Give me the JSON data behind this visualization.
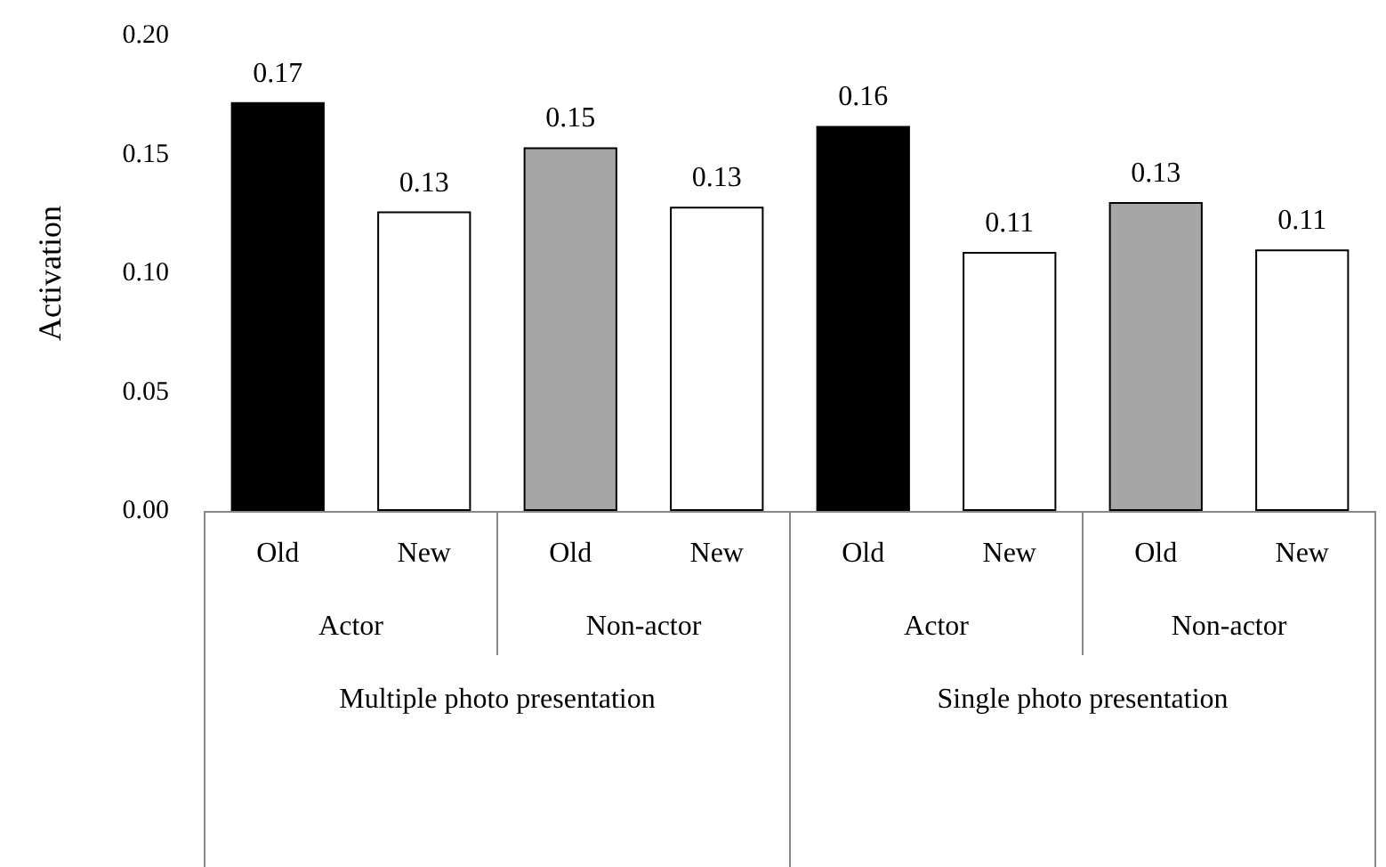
{
  "chart_data": {
    "type": "bar",
    "ylabel": "Activation",
    "categories": [
      "Old",
      "New",
      "Old",
      "New",
      "Old",
      "New",
      "Old",
      "New"
    ],
    "values": [
      0.172,
      0.126,
      0.153,
      0.128,
      0.162,
      0.109,
      0.13,
      0.11
    ],
    "value_labels": [
      "0.17",
      "0.13",
      "0.15",
      "0.13",
      "0.16",
      "0.11",
      "0.13",
      "0.11"
    ],
    "colors": [
      "#000000",
      "#ffffff",
      "#a6a6a6",
      "#ffffff",
      "#000000",
      "#ffffff",
      "#a6a6a6",
      "#ffffff"
    ],
    "ylim": [
      0,
      0.2
    ],
    "yticks": [
      {
        "value": 0,
        "label": "0.00"
      },
      {
        "value": 0.05,
        "label": "0.05"
      },
      {
        "value": 0.1,
        "label": "0.10"
      },
      {
        "value": 0.15,
        "label": "0.15"
      },
      {
        "value": 0.2,
        "label": "0.20"
      }
    ],
    "annotations": [
      "Actor",
      "Non-actor",
      "Actor",
      "Non-actor",
      "Multiple photo presentation",
      "Single photo presentation"
    ]
  }
}
